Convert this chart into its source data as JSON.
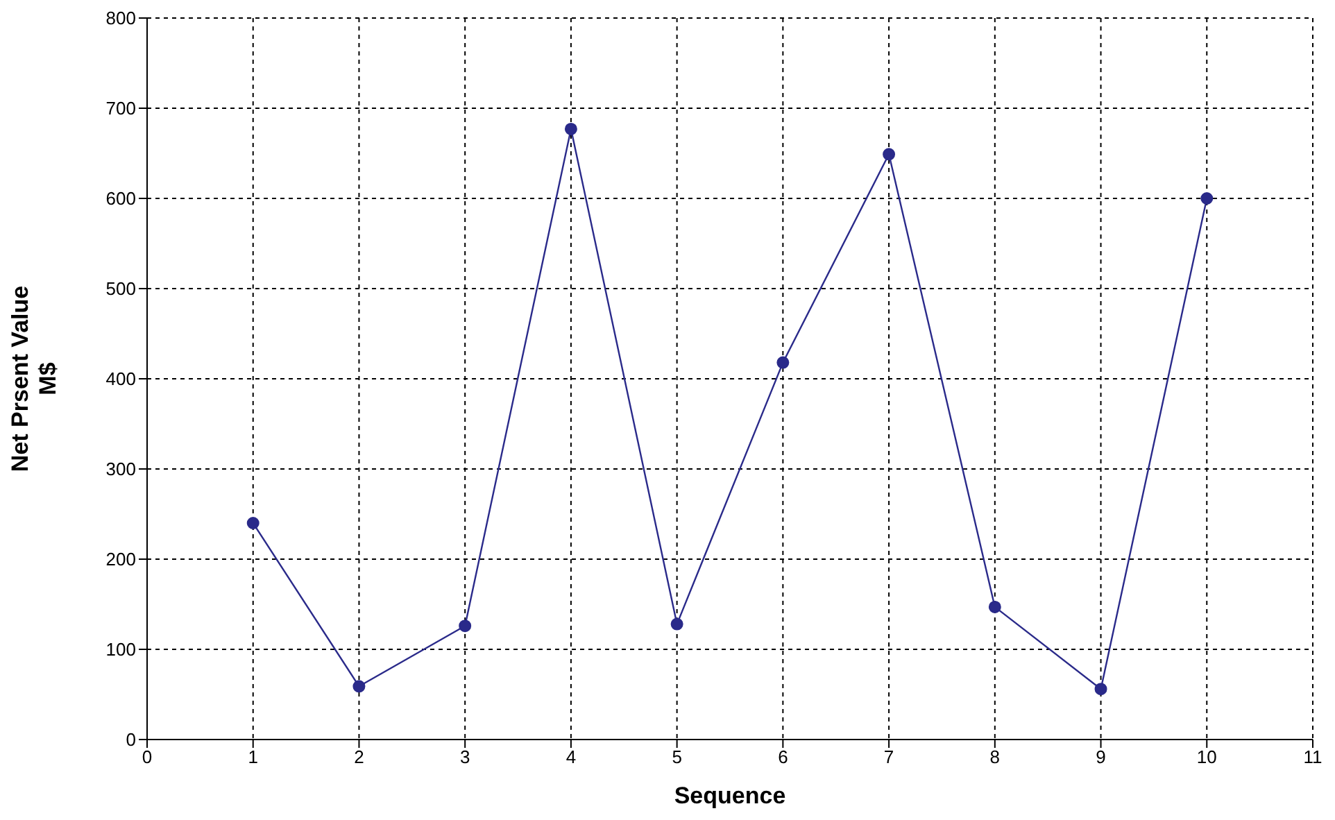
{
  "chart_data": {
    "type": "line",
    "xlabel": "Sequence",
    "ylabel": "Net Prsent Value\nM$",
    "x": [
      1,
      2,
      3,
      4,
      5,
      6,
      7,
      8,
      9,
      10
    ],
    "series": [
      {
        "color": "#2a2a8a",
        "values": [
          240,
          59,
          126,
          677,
          128,
          418,
          649,
          147,
          56,
          600
        ]
      }
    ],
    "xlim": [
      0,
      11
    ],
    "xticks": [
      0,
      1,
      2,
      3,
      4,
      5,
      6,
      7,
      8,
      9,
      10,
      11
    ],
    "ylim": [
      0,
      800
    ],
    "yticks": [
      0,
      100,
      200,
      300,
      400,
      500,
      600,
      700,
      800
    ],
    "grid": true,
    "marker": "circle",
    "line_style": "solid"
  }
}
